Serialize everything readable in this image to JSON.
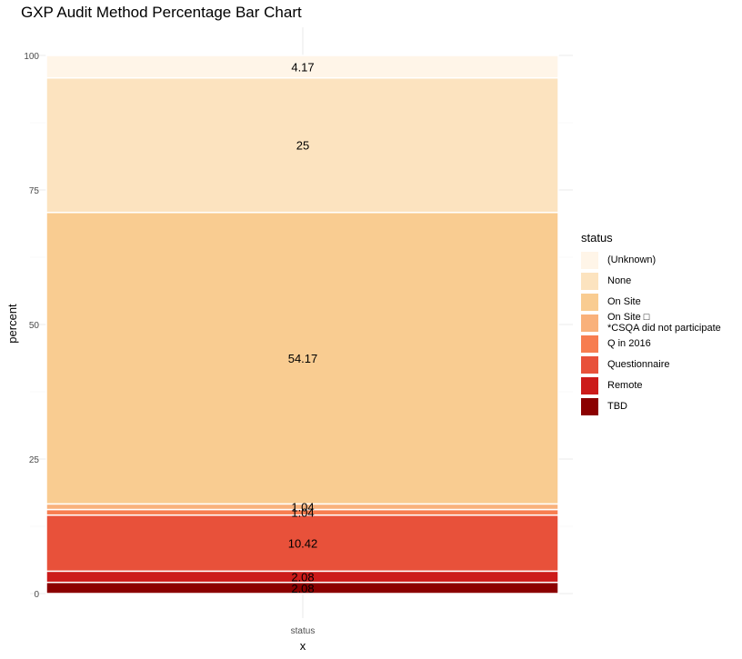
{
  "chart_data": {
    "type": "bar",
    "title": "GXP Audit Method Percentage Bar Chart",
    "xlabel": "x",
    "ylabel": "percent",
    "categories": [
      "status"
    ],
    "ylim": [
      0,
      100
    ],
    "yticks": [
      0,
      25,
      50,
      75,
      100
    ],
    "stacked": true,
    "grid": true,
    "legend_position": "right",
    "legend_title": "status",
    "series": [
      {
        "name": "(Unknown)",
        "value": 4.17,
        "color": "#fff5e8",
        "label": "4.17"
      },
      {
        "name": "None",
        "value": 25,
        "color": "#fce3bf",
        "label": "25"
      },
      {
        "name": "On Site",
        "value": 54.17,
        "color": "#f9cc91",
        "label": "54.17"
      },
      {
        "name": "On Site □\n*CSQA did not participate",
        "value": 1.04,
        "color": "#f9b17b",
        "label": "1.04"
      },
      {
        "name": "Q in 2016",
        "value": 1.04,
        "color": "#f77d50",
        "label": "1.04"
      },
      {
        "name": "Questionnaire",
        "value": 10.42,
        "color": "#e8513a",
        "label": "10.42"
      },
      {
        "name": "Remote",
        "value": 2.08,
        "color": "#cc1b1a",
        "label": "2.08"
      },
      {
        "name": "TBD",
        "value": 2.08,
        "color": "#8b0000",
        "label": "2.08"
      }
    ]
  }
}
